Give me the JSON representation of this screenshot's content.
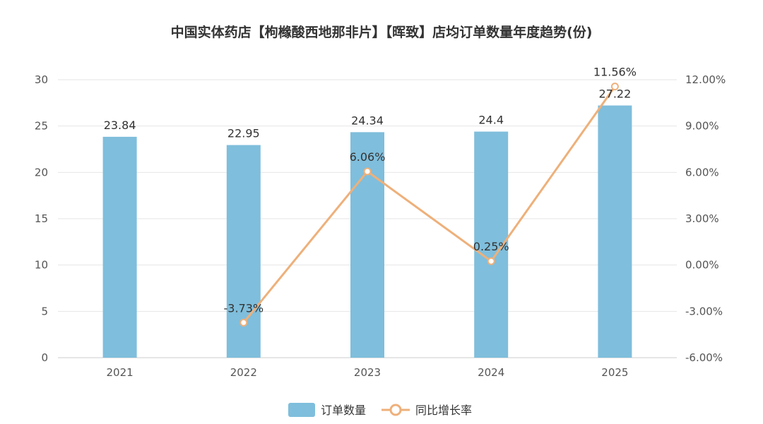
{
  "chart_data": {
    "type": "bar",
    "title": "中国实体药店【枸橼酸西地那非片】【晖致】店均订单数量年度趋势(份)",
    "categories": [
      "2021",
      "2022",
      "2023",
      "2024",
      "2025"
    ],
    "series": [
      {
        "name": "订单数量",
        "type": "bar",
        "axis": "left",
        "color": "#7fbedc",
        "values": [
          23.84,
          22.95,
          24.34,
          24.4,
          27.22
        ],
        "labels": [
          "23.84",
          "22.95",
          "24.34",
          "24.4",
          "27.22"
        ]
      },
      {
        "name": "同比增长率",
        "type": "line",
        "axis": "right",
        "color": "#eeb07a",
        "values": [
          null,
          -3.73,
          6.06,
          0.25,
          11.56
        ],
        "labels": [
          "",
          "-3.73%",
          "6.06%",
          "0.25%",
          "11.56%"
        ]
      }
    ],
    "y_left": {
      "min": 0,
      "max": 30,
      "step": 5,
      "ticks": [
        "0",
        "5",
        "10",
        "15",
        "20",
        "25",
        "30"
      ]
    },
    "y_right": {
      "min": -6,
      "max": 12,
      "step": 3,
      "ticks": [
        "-6.00%",
        "-3.00%",
        "0.00%",
        "3.00%",
        "6.00%",
        "9.00%",
        "12.00%"
      ]
    },
    "legend": {
      "position": "bottom-center"
    },
    "grid": true
  },
  "colors": {
    "bar": "#7fbedc",
    "line": "#eeb07a",
    "grid": "#e6e6e6",
    "text": "#333333",
    "axis_text": "#555555"
  }
}
